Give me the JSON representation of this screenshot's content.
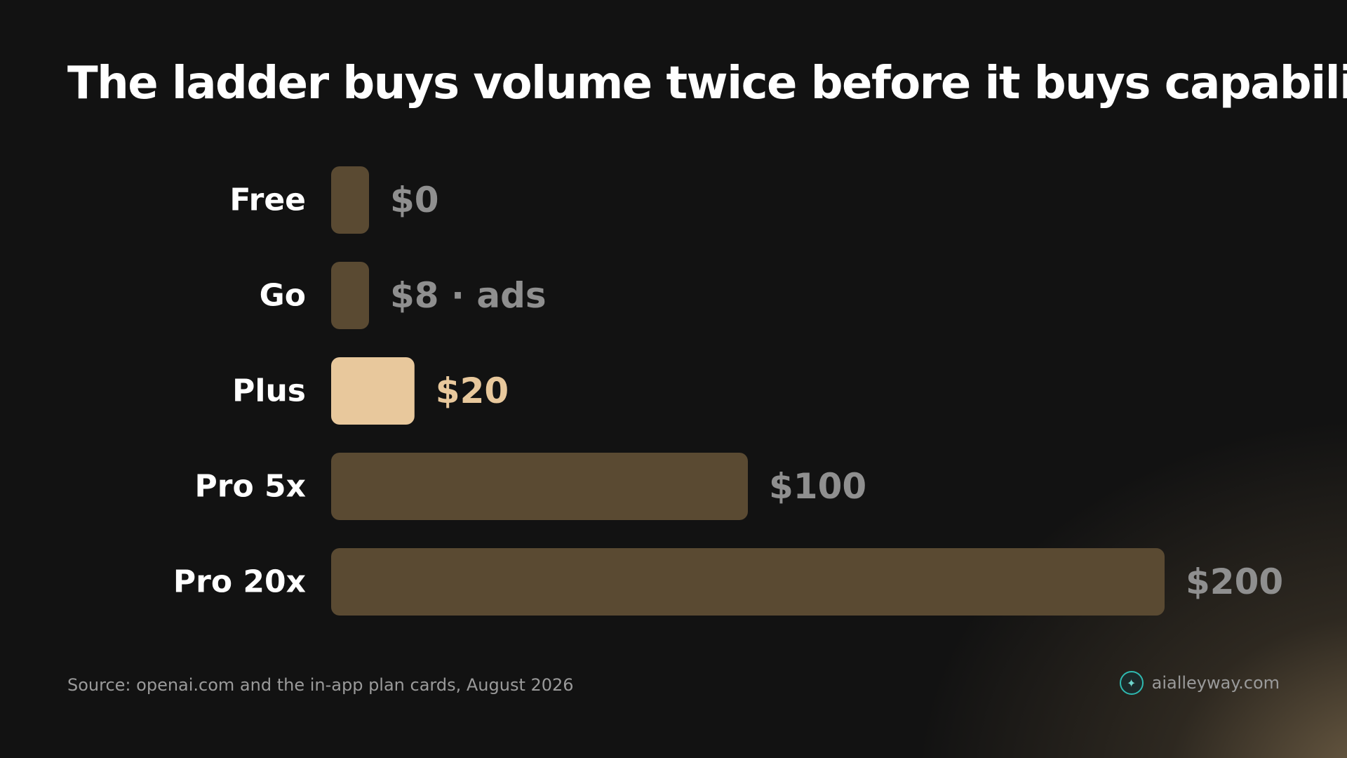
{
  "colors": {
    "background": "#121212",
    "bar": "#5a4a32",
    "bar_highlight": "#e8c89c",
    "value_muted": "#8f8f8f",
    "value_highlight": "#e8c89c",
    "category_label": "#ffffff"
  },
  "chart_data": {
    "type": "bar",
    "orientation": "horizontal",
    "title": "The ladder buys volume twice before it buys capability",
    "categories": [
      "Free",
      "Go",
      "Plus",
      "Pro 5x",
      "Pro 20x"
    ],
    "values": [
      0,
      8,
      20,
      100,
      200
    ],
    "value_labels": [
      "$0",
      "$8 · ads",
      "$20",
      "$100",
      "$200"
    ],
    "highlight": "Plus",
    "xlim": [
      0,
      200
    ],
    "grid": false
  },
  "footer": {
    "source": "Source: openai.com and the in-app plan cards, August 2026",
    "brand": "aialleyway.com",
    "brand_icon": "butterfly-icon"
  }
}
